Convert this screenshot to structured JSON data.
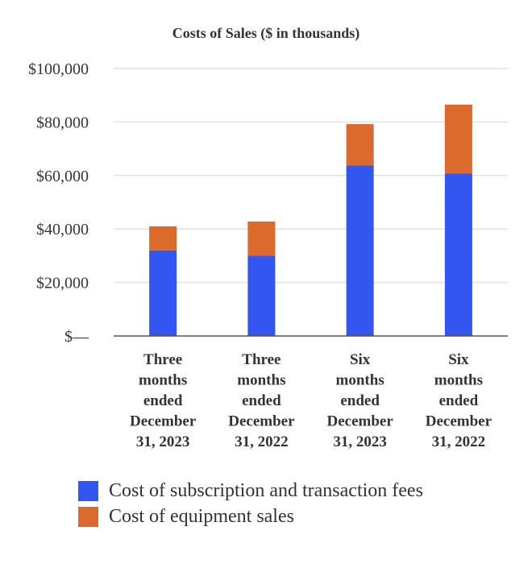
{
  "chart_data": {
    "type": "bar",
    "stacked": true,
    "title": "Costs of Sales ($ in thousands)",
    "categories": [
      [
        "Three",
        "months",
        "ended",
        "December",
        "31, 2023"
      ],
      [
        "Three",
        "months",
        "ended",
        "December",
        "31, 2022"
      ],
      [
        "Six",
        "months",
        "ended",
        "December",
        "31, 2023"
      ],
      [
        "Six",
        "months",
        "ended",
        "December",
        "31, 2022"
      ]
    ],
    "series": [
      {
        "name": "Cost of subscription and transaction fees",
        "color": "#3355f0",
        "values": [
          32000,
          30000,
          63700,
          60700
        ]
      },
      {
        "name": "Cost of equipment sales",
        "color": "#db6a2c",
        "values": [
          9000,
          12800,
          15500,
          25800
        ]
      }
    ],
    "yticks": [
      0,
      20000,
      40000,
      60000,
      80000,
      100000
    ],
    "ytick_labels": [
      "$—",
      "$20,000",
      "$40,000",
      "$60,000",
      "$80,000",
      "$100,000"
    ],
    "ylim": [
      0,
      100000
    ],
    "grid": true,
    "legend_position": "bottom"
  }
}
